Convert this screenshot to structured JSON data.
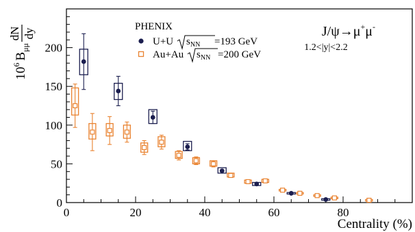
{
  "chart_data": {
    "type": "scatter",
    "xlabel": "Centrality (%)",
    "ylabel": {
      "prefix": "10",
      "exp": "6",
      "b": "B",
      "bsub": "μμ",
      "frac_num": "dN",
      "frac_den": "dy"
    },
    "xlim": [
      0,
      100
    ],
    "ylim": [
      0,
      250
    ],
    "xticks": [
      0,
      20,
      40,
      60,
      80
    ],
    "yticks": [
      0,
      50,
      100,
      150,
      200
    ],
    "x_minor_step": 5,
    "y_minor_step": 10,
    "title": {
      "main": "J/ψ→μ",
      "sup1": "+",
      "mid": "μ",
      "sup2": "-",
      "sub": "1.2<|y|<2.2"
    },
    "experiment": "PHENIX",
    "series": [
      {
        "name": "U+U",
        "energy_label": "=193 GeV",
        "color": "#1b1e4f",
        "marker": "filled-circle",
        "points": [
          {
            "x": 5,
            "y": 182,
            "stat": 36,
            "sys_lo": 165,
            "sys_hi": 198
          },
          {
            "x": 15,
            "y": 144,
            "stat": 19,
            "sys_lo": 133,
            "sys_hi": 154
          },
          {
            "x": 25,
            "y": 110,
            "stat": 8,
            "sys_lo": 102,
            "sys_hi": 120
          },
          {
            "x": 35,
            "y": 72,
            "stat": 4,
            "sys_lo": 67,
            "sys_hi": 79
          },
          {
            "x": 45,
            "y": 41,
            "stat": 2,
            "sys_lo": 38,
            "sys_hi": 45
          },
          {
            "x": 55,
            "y": 24,
            "stat": 1,
            "sys_lo": 22,
            "sys_hi": 26
          },
          {
            "x": 65,
            "y": 12,
            "stat": 1,
            "sys_lo": 11,
            "sys_hi": 13
          },
          {
            "x": 75,
            "y": 4,
            "stat": 0.5,
            "sys_lo": 3,
            "sys_hi": 5
          }
        ]
      },
      {
        "name": "Au+Au",
        "energy_label": "=200 GeV",
        "color": "#e9822f",
        "marker": "open-square",
        "points": [
          {
            "x": 2.5,
            "y": 125,
            "stat": 28,
            "sys_lo": 113,
            "sys_hi": 148
          },
          {
            "x": 7.5,
            "y": 91,
            "stat": 24,
            "sys_lo": 82,
            "sys_hi": 102
          },
          {
            "x": 12.5,
            "y": 93,
            "stat": 18,
            "sys_lo": 86,
            "sys_hi": 102
          },
          {
            "x": 17.5,
            "y": 91,
            "stat": 13,
            "sys_lo": 83,
            "sys_hi": 100
          },
          {
            "x": 22.5,
            "y": 71,
            "stat": 9,
            "sys_lo": 65,
            "sys_hi": 77
          },
          {
            "x": 27.5,
            "y": 78,
            "stat": 9,
            "sys_lo": 72,
            "sys_hi": 85
          },
          {
            "x": 32.5,
            "y": 61,
            "stat": 6,
            "sys_lo": 57,
            "sys_hi": 66
          },
          {
            "x": 37.5,
            "y": 54,
            "stat": 5,
            "sys_lo": 50,
            "sys_hi": 58
          },
          {
            "x": 42.5,
            "y": 50,
            "stat": 4,
            "sys_lo": 47,
            "sys_hi": 54
          },
          {
            "x": 47.5,
            "y": 35,
            "stat": 3,
            "sys_lo": 33,
            "sys_hi": 38
          },
          {
            "x": 52.5,
            "y": 27,
            "stat": 2,
            "sys_lo": 25,
            "sys_hi": 29
          },
          {
            "x": 57.5,
            "y": 28,
            "stat": 2,
            "sys_lo": 26,
            "sys_hi": 30
          },
          {
            "x": 62.5,
            "y": 16,
            "stat": 1.5,
            "sys_lo": 15,
            "sys_hi": 17
          },
          {
            "x": 67.5,
            "y": 12,
            "stat": 1,
            "sys_lo": 11,
            "sys_hi": 13
          },
          {
            "x": 72.5,
            "y": 9,
            "stat": 1,
            "sys_lo": 8,
            "sys_hi": 10
          },
          {
            "x": 77.5,
            "y": 6,
            "stat": 0.7,
            "sys_lo": 5,
            "sys_hi": 7
          },
          {
            "x": 87.5,
            "y": 3,
            "stat": 0.5,
            "sys_lo": 2,
            "sys_hi": 4
          }
        ]
      }
    ],
    "legend_position": "top-left",
    "grid": false
  }
}
